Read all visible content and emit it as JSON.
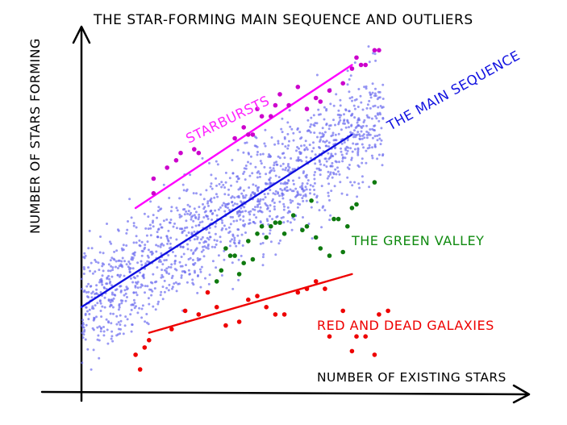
{
  "chart_data": {
    "type": "scatter",
    "title": "THE STAR-FORMING MAIN SEQUENCE AND OUTLIERS",
    "xlabel": "NUMBER OF EXISTING STARS",
    "ylabel": "NUMBER OF STARS FORMING",
    "xlim": [
      0,
      10
    ],
    "ylim": [
      0,
      10
    ],
    "grid": false,
    "legend": "none",
    "axis_ticks": "none",
    "colors": {
      "main_sequence": "#6d6df0",
      "main_sequence_line": "#1010e0",
      "starbursts": "#cc00cc",
      "starburst_line": "#ff00ff",
      "green_valley": "#0f7a0f",
      "red_dead": "#ee0000",
      "red_line": "#ee0000",
      "axes": "#000000"
    },
    "annotations": {
      "starbursts": "STARBURSTS",
      "main_sequence": "THE MAIN SEQUENCE",
      "green_valley": "THE GREEN VALLEY",
      "red_dead": "RED AND DEAD GALAXIES"
    },
    "trend_lines": [
      {
        "name": "THE MAIN SEQUENCE",
        "color_key": "main_sequence_line",
        "x": [
          0.0,
          6.0
        ],
        "y": [
          2.4,
          7.1
        ]
      },
      {
        "name": "STARBURSTS",
        "color_key": "starburst_line",
        "x": [
          1.2,
          6.0
        ],
        "y": [
          5.1,
          9.0
        ]
      },
      {
        "name": "RED AND DEAD GALAXIES",
        "color_key": "red_line",
        "x": [
          1.5,
          6.0
        ],
        "y": [
          1.7,
          3.3
        ]
      }
    ],
    "main_sequence_cloud": {
      "x_range": [
        0.0,
        6.7
      ],
      "slope": 0.78,
      "intercept": 2.4,
      "scatter": 0.75,
      "count": 1500
    },
    "series": [
      {
        "name": "STARBURSTS",
        "color_key": "starbursts",
        "x": [
          1.6,
          1.6,
          1.9,
          2.1,
          2.2,
          2.5,
          2.6,
          3.4,
          3.6,
          3.7,
          3.8,
          3.9,
          4.0,
          4.2,
          4.3,
          4.4,
          4.6,
          4.8,
          5.0,
          5.2,
          5.3,
          5.5,
          5.8,
          6.0,
          6.1,
          6.2,
          6.3,
          6.5,
          6.6
        ],
        "y": [
          5.9,
          5.5,
          6.2,
          6.4,
          6.6,
          6.7,
          6.6,
          7.0,
          7.3,
          7.1,
          7.1,
          7.8,
          7.6,
          7.6,
          7.9,
          8.2,
          7.9,
          8.4,
          7.8,
          8.1,
          8.0,
          8.3,
          8.5,
          8.9,
          9.2,
          9.0,
          9.0,
          9.4,
          9.4
        ]
      },
      {
        "name": "THE GREEN VALLEY",
        "color_key": "green_valley",
        "x": [
          3.0,
          3.1,
          3.2,
          3.3,
          3.4,
          3.5,
          3.6,
          3.7,
          3.8,
          3.9,
          4.0,
          4.1,
          4.2,
          4.3,
          4.4,
          4.5,
          4.7,
          4.9,
          5.0,
          5.1,
          5.2,
          5.3,
          5.5,
          5.6,
          5.7,
          5.8,
          5.9,
          6.0,
          6.1,
          6.5
        ],
        "y": [
          3.1,
          3.4,
          4.0,
          3.8,
          3.8,
          3.3,
          3.6,
          4.2,
          3.7,
          4.4,
          4.6,
          4.3,
          4.6,
          4.7,
          4.7,
          4.4,
          4.9,
          4.5,
          4.6,
          5.3,
          4.3,
          4.0,
          3.8,
          4.8,
          4.8,
          3.9,
          4.6,
          5.1,
          5.2,
          5.8
        ]
      },
      {
        "name": "RED AND DEAD GALAXIES",
        "color_key": "red_dead",
        "x": [
          1.2,
          1.3,
          1.4,
          1.5,
          2.0,
          2.3,
          2.6,
          2.8,
          3.0,
          3.2,
          3.5,
          3.7,
          3.9,
          4.1,
          4.3,
          4.5,
          4.8,
          5.0,
          5.2,
          5.4,
          5.5,
          5.8,
          6.0,
          6.1,
          6.3,
          6.5,
          6.6,
          6.8
        ],
        "y": [
          1.1,
          0.7,
          1.3,
          1.5,
          1.8,
          2.3,
          2.2,
          2.8,
          2.4,
          1.9,
          2.0,
          2.6,
          2.7,
          2.4,
          2.2,
          2.2,
          2.8,
          2.9,
          3.1,
          2.9,
          1.6,
          2.3,
          1.2,
          1.6,
          1.6,
          1.1,
          2.2,
          2.3
        ]
      }
    ]
  }
}
